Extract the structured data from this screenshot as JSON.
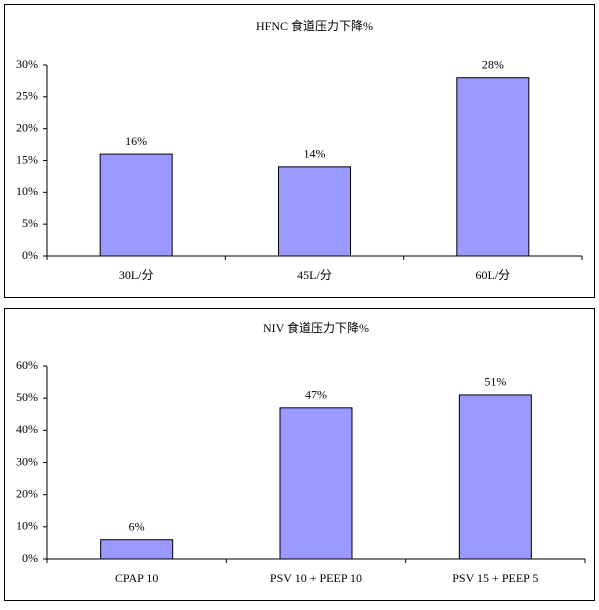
{
  "chart_data": [
    {
      "type": "bar",
      "title": "HFNC 食道压力下降%",
      "categories": [
        "30L/分",
        "45L/分",
        "60L/分"
      ],
      "values": [
        16,
        14,
        28
      ],
      "value_labels": [
        "16%",
        "14%",
        "28%"
      ],
      "color": "#9999ff",
      "ylim": [
        0,
        30
      ],
      "yticks": [
        {
          "value": 0,
          "label": "0%"
        },
        {
          "value": 5,
          "label": "5%"
        },
        {
          "value": 10,
          "label": "10%"
        },
        {
          "value": 15,
          "label": "15%"
        },
        {
          "value": 20,
          "label": "20%"
        },
        {
          "value": 25,
          "label": "25%"
        },
        {
          "value": 30,
          "label": "30%"
        }
      ],
      "grid": false
    },
    {
      "type": "bar",
      "title": "NIV 食道压力下降%",
      "categories": [
        "CPAP 10",
        "PSV 10 + PEEP 10",
        "PSV 15 + PEEP 5"
      ],
      "values": [
        6,
        47,
        51
      ],
      "value_labels": [
        "6%",
        "47%",
        "51%"
      ],
      "color": "#9999ff",
      "ylim": [
        0,
        60
      ],
      "yticks": [
        {
          "value": 0,
          "label": "0%"
        },
        {
          "value": 10,
          "label": "10%"
        },
        {
          "value": 20,
          "label": "20%"
        },
        {
          "value": 30,
          "label": "30%"
        },
        {
          "value": 40,
          "label": "40%"
        },
        {
          "value": 50,
          "label": "50%"
        },
        {
          "value": 60,
          "label": "60%"
        }
      ],
      "grid": false
    }
  ]
}
